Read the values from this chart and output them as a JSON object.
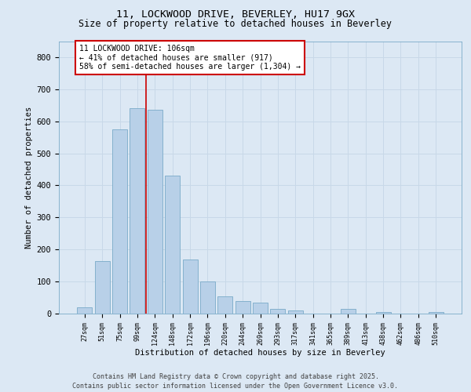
{
  "title_line1": "11, LOCKWOOD DRIVE, BEVERLEY, HU17 9GX",
  "title_line2": "Size of property relative to detached houses in Beverley",
  "xlabel": "Distribution of detached houses by size in Beverley",
  "ylabel": "Number of detached properties",
  "categories": [
    "27sqm",
    "51sqm",
    "75sqm",
    "99sqm",
    "124sqm",
    "148sqm",
    "172sqm",
    "196sqm",
    "220sqm",
    "244sqm",
    "269sqm",
    "293sqm",
    "317sqm",
    "341sqm",
    "365sqm",
    "389sqm",
    "413sqm",
    "438sqm",
    "462sqm",
    "486sqm",
    "510sqm"
  ],
  "values": [
    20,
    165,
    575,
    640,
    635,
    430,
    170,
    100,
    55,
    40,
    35,
    15,
    10,
    0,
    0,
    15,
    0,
    5,
    0,
    0,
    5
  ],
  "bar_color": "#b8d0e8",
  "bar_edge_color": "#7aaac8",
  "vline_color": "#cc0000",
  "vline_x_index": 3.5,
  "annotation_text_line1": "11 LOCKWOOD DRIVE: 106sqm",
  "annotation_text_line2": "← 41% of detached houses are smaller (917)",
  "annotation_text_line3": "58% of semi-detached houses are larger (1,304) →",
  "annotation_box_color": "#cc0000",
  "annotation_bg": "#ffffff",
  "ylim": [
    0,
    850
  ],
  "yticks": [
    0,
    100,
    200,
    300,
    400,
    500,
    600,
    700,
    800
  ],
  "grid_color": "#c8d8e8",
  "background_color": "#dce8f4",
  "title_fontsize": 9.5,
  "subtitle_fontsize": 8.5,
  "ylabel_fontsize": 7.5,
  "xlabel_fontsize": 7.5,
  "ytick_fontsize": 7.5,
  "xtick_fontsize": 6,
  "annotation_fontsize": 7,
  "footer_line1": "Contains HM Land Registry data © Crown copyright and database right 2025.",
  "footer_line2": "Contains public sector information licensed under the Open Government Licence v3.0.",
  "footer_fontsize": 6
}
